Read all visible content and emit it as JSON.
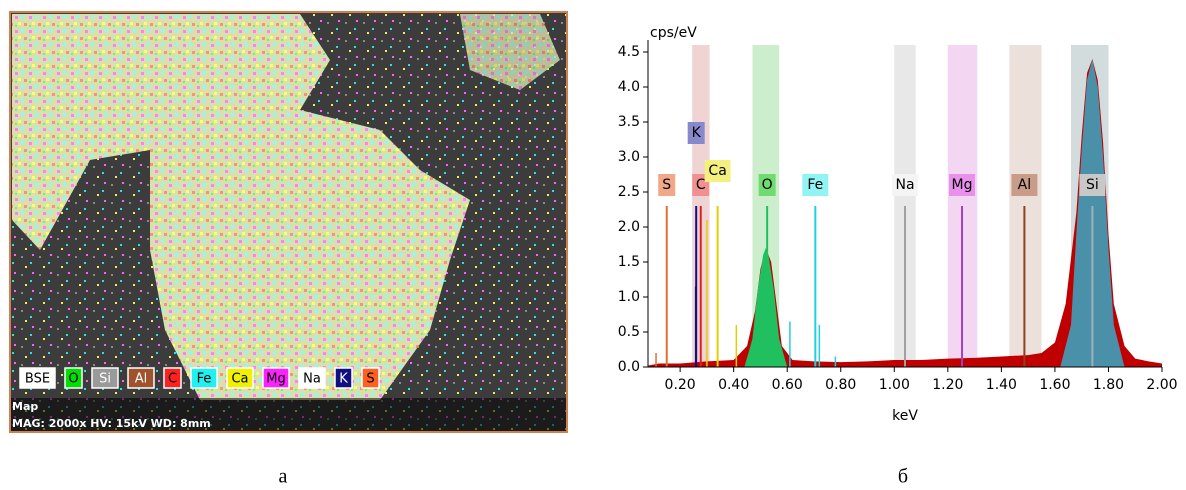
{
  "image_panel": {
    "legend": [
      {
        "label": "BSE",
        "color": "#ffffff",
        "text": "#000"
      },
      {
        "label": "O",
        "color": "#00e000",
        "text": "#000"
      },
      {
        "label": "Si",
        "color": "#9a9a9a",
        "text": "#fff"
      },
      {
        "label": "Al",
        "color": "#a0522d",
        "text": "#fff"
      },
      {
        "label": "C",
        "color": "#ff2020",
        "text": "#000"
      },
      {
        "label": "Fe",
        "color": "#20f0f0",
        "text": "#000"
      },
      {
        "label": "Ca",
        "color": "#f0f000",
        "text": "#000"
      },
      {
        "label": "Mg",
        "color": "#ff20ff",
        "text": "#000"
      },
      {
        "label": "Na",
        "color": "#ffffff",
        "text": "#000"
      },
      {
        "label": "K",
        "color": "#101080",
        "text": "#fff"
      },
      {
        "label": "S",
        "color": "#ff6020",
        "text": "#000"
      }
    ],
    "title": "Map",
    "info": "MAG: 2000x  HV: 15kV  WD: 8mm",
    "caption": "а"
  },
  "chart_data": {
    "type": "area",
    "caption": "б",
    "ylabel": "cps/eV",
    "xlabel": "keV",
    "xlim": [
      0.08,
      2.0
    ],
    "ylim": [
      0,
      4.6
    ],
    "xticks": [
      {
        "value": 0.2,
        "label": "0.20"
      },
      {
        "value": 0.4,
        "label": "0.40"
      },
      {
        "value": 0.6,
        "label": "0.60"
      },
      {
        "value": 0.8,
        "label": "0.80"
      },
      {
        "value": 1.0,
        "label": "1.00"
      },
      {
        "value": 1.2,
        "label": "1.20"
      },
      {
        "value": 1.4,
        "label": "1.40"
      },
      {
        "value": 1.6,
        "label": "1.60"
      },
      {
        "value": 1.8,
        "label": "1.80"
      },
      {
        "value": 2.0,
        "label": "2.00"
      }
    ],
    "yticks": [
      {
        "value": 0,
        "label": "0.0"
      },
      {
        "value": 0.5,
        "label": "0.5"
      },
      {
        "value": 1.0,
        "label": "1.0"
      },
      {
        "value": 1.5,
        "label": "1.5"
      },
      {
        "value": 2.0,
        "label": "2.0"
      },
      {
        "value": 2.5,
        "label": "2.5"
      },
      {
        "value": 3.0,
        "label": "3.0"
      },
      {
        "value": 3.5,
        "label": "3.5"
      },
      {
        "value": 4.0,
        "label": "4.0"
      },
      {
        "value": 4.5,
        "label": "4.5"
      }
    ],
    "spectrum": {
      "color": "#c00000",
      "x": [
        0.08,
        0.12,
        0.2,
        0.3,
        0.4,
        0.45,
        0.48,
        0.5,
        0.52,
        0.54,
        0.56,
        0.58,
        0.62,
        0.7,
        0.8,
        0.9,
        1.0,
        1.1,
        1.2,
        1.3,
        1.4,
        1.5,
        1.55,
        1.6,
        1.64,
        1.68,
        1.7,
        1.72,
        1.74,
        1.76,
        1.78,
        1.8,
        1.82,
        1.86,
        1.9,
        1.95,
        2.0
      ],
      "values": [
        0.02,
        0.05,
        0.05,
        0.08,
        0.1,
        0.3,
        0.8,
        1.4,
        1.7,
        1.5,
        0.9,
        0.3,
        0.1,
        0.08,
        0.07,
        0.08,
        0.1,
        0.1,
        0.12,
        0.13,
        0.15,
        0.17,
        0.2,
        0.35,
        0.9,
        2.2,
        3.3,
        4.2,
        4.4,
        4.1,
        3.2,
        1.9,
        0.9,
        0.3,
        0.12,
        0.08,
        0.05
      ]
    },
    "peaks": [
      {
        "color": "#20c060",
        "x": [
          0.44,
          0.47,
          0.49,
          0.51,
          0.52,
          0.53,
          0.55,
          0.57,
          0.6
        ],
        "values": [
          0,
          0.4,
          1.1,
          1.6,
          1.7,
          1.6,
          1.1,
          0.4,
          0
        ]
      },
      {
        "color": "#4a90a8",
        "x": [
          1.62,
          1.66,
          1.68,
          1.7,
          1.72,
          1.74,
          1.76,
          1.78,
          1.8,
          1.82,
          1.86
        ],
        "values": [
          0,
          0.6,
          1.9,
          3.1,
          4.1,
          4.4,
          4.0,
          3.0,
          1.7,
          0.6,
          0
        ]
      }
    ],
    "elements": [
      {
        "label": "S",
        "x": 0.15,
        "height": 2.3,
        "color": "#e07030",
        "box": "#f0a888"
      },
      {
        "label": "K",
        "x": 0.26,
        "height": 2.3,
        "color": "#101080",
        "box": "#8888cc",
        "band": [
          0.245,
          0.31
        ],
        "band_color": "#f0d4d4"
      },
      {
        "label": "C",
        "x": 0.277,
        "height": 2.3,
        "color": "#e02020",
        "box": "#f09090"
      },
      {
        "label": "Ca",
        "x": 0.34,
        "height": 2.3,
        "color": "#e0d000",
        "box": "#f4f080"
      },
      {
        "label": "O",
        "x": 0.525,
        "height": 2.3,
        "color": "#20c060",
        "box": "#70dc70",
        "band": [
          0.47,
          0.57
        ],
        "band_color": "#cdeecd"
      },
      {
        "label": "Fe",
        "x": 0.705,
        "height": 2.3,
        "color": "#20d0e0",
        "box": "#90f4f4"
      },
      {
        "label": "Na",
        "x": 1.04,
        "height": 2.3,
        "color": "#a0a0a0",
        "box": "#f4f4f4",
        "band": [
          1.0,
          1.08
        ],
        "band_color": "#e8e8e8"
      },
      {
        "label": "Mg",
        "x": 1.253,
        "height": 2.3,
        "color": "#a040c0",
        "box": "#e890ec",
        "band": [
          1.2,
          1.31
        ],
        "band_color": "#f2d6f2"
      },
      {
        "label": "Al",
        "x": 1.486,
        "height": 2.3,
        "color": "#904020",
        "box": "#c89c88",
        "band": [
          1.43,
          1.55
        ],
        "band_color": "#ebe0da"
      },
      {
        "label": "Si",
        "x": 1.74,
        "height": 2.3,
        "color": "#a0b0b8",
        "box": "#c8c8c8",
        "band": [
          1.66,
          1.8
        ],
        "band_color": "#d2dcdc"
      }
    ],
    "lines": [
      {
        "x": 0.258,
        "height": 1.15,
        "color": "#101080"
      },
      {
        "x": 0.3,
        "height": 2.1,
        "color": "#e0d000"
      },
      {
        "x": 0.41,
        "height": 0.6,
        "color": "#e0d000"
      },
      {
        "x": 0.61,
        "height": 0.65,
        "color": "#20d0e0"
      },
      {
        "x": 0.72,
        "height": 0.6,
        "color": "#20d0e0"
      },
      {
        "x": 0.78,
        "height": 0.15,
        "color": "#20d0e0"
      },
      {
        "x": 0.11,
        "height": 0.2,
        "color": "#e07030"
      }
    ]
  }
}
